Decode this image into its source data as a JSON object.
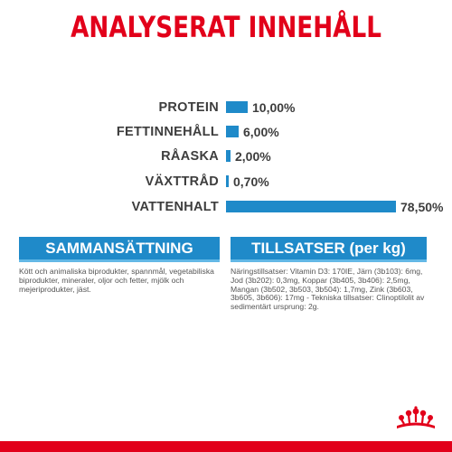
{
  "title": "ANALYSERAT INNEHÅLL",
  "analysis": [
    {
      "label": "PROTEIN",
      "value": "10,00%",
      "percent": 10.0
    },
    {
      "label": "FETTINNEHÅLL",
      "value": "6,00%",
      "percent": 6.0
    },
    {
      "label": "RÅASKA",
      "value": "2,00%",
      "percent": 2.0
    },
    {
      "label": "VÄXTTRÅD",
      "value": "0,70%",
      "percent": 0.7
    },
    {
      "label": "VATTENHALT",
      "value": "78,50%",
      "percent": 78.5
    }
  ],
  "composition": {
    "heading": "SAMMANSÄTTNING",
    "text": "Kött och animaliska biprodukter, spannmål, vegetabiliska biprodukter, mineraler, oljor och fetter, mjölk och mejeriprodukter, jäst."
  },
  "additives": {
    "heading": "TILLSATSER (per kg)",
    "text": "Näringstillsatser: Vitamin D3: 170IE, Järn (3b103): 6mg, Jod (3b202): 0,3mg, Koppar (3b405, 3b406): 2,5mg, Mangan (3b502, 3b503, 3b504): 1,7mg, Zink (3b603, 3b605, 3b606): 17mg - Tekniska tillsatser: Clinoptilolit av sedimentärt ursprung: 2g."
  },
  "colors": {
    "title_red": "#e2001a",
    "bar_blue": "#1f8ac9",
    "accent_light_blue": "#63b8e6",
    "bottom_bar_red": "#e2001a"
  },
  "icons": {
    "logo": "royal-canin-crown-logo"
  }
}
